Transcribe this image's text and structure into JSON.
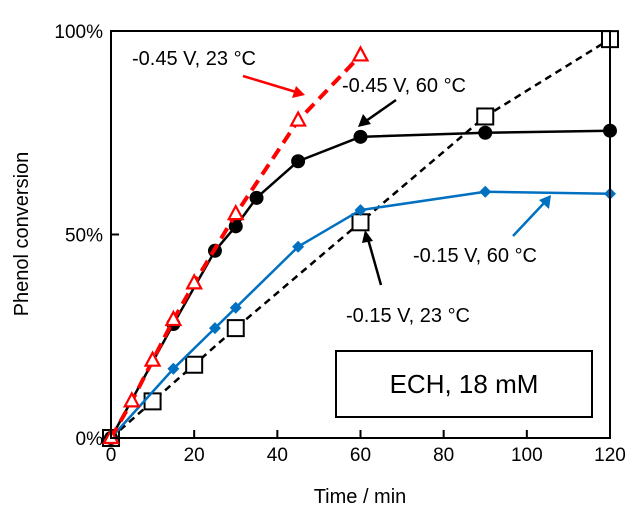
{
  "chart_data": {
    "type": "line",
    "title": "",
    "xlabel": "Time / min",
    "ylabel": "Phenol conversion",
    "xlim": [
      0,
      120
    ],
    "ylim": [
      0,
      100
    ],
    "x_ticks": [
      0,
      20,
      40,
      60,
      80,
      100,
      120
    ],
    "x_tick_labels": [
      "0",
      "20",
      "40",
      "60",
      "80",
      "100",
      "120"
    ],
    "y_ticks": [
      0,
      50,
      100
    ],
    "y_tick_labels": [
      "0%",
      "50%",
      "100%"
    ],
    "grid": false,
    "legend": "none",
    "boxed_annotation": "ECH, 18 mM",
    "series": [
      {
        "name": "-0.45 V, 23 °C",
        "color": "#ff0000",
        "marker": "open-triangle",
        "line": "dashed",
        "x": [
          0,
          5,
          10,
          15,
          20,
          30,
          45,
          60
        ],
        "y": [
          0,
          9,
          19,
          29,
          38,
          55,
          78,
          94
        ]
      },
      {
        "name": "-0.45 V, 60 °C",
        "color": "#000000",
        "marker": "filled-circle",
        "line": "solid",
        "x": [
          0,
          15,
          25,
          30,
          35,
          45,
          60,
          90,
          120
        ],
        "y": [
          0,
          28,
          46,
          52,
          59,
          68,
          74,
          75,
          75.5
        ]
      },
      {
        "name": "-0.15 V, 60 °C",
        "color": "#0070c0",
        "marker": "filled-diamond",
        "line": "solid",
        "x": [
          0,
          15,
          25,
          30,
          45,
          60,
          90,
          120
        ],
        "y": [
          0,
          17,
          27,
          32,
          47,
          56,
          60.5,
          60
        ]
      },
      {
        "name": "-0.15 V, 23 °C",
        "color": "#000000",
        "marker": "open-square",
        "line": "dashed",
        "x": [
          0,
          10,
          20,
          30,
          60,
          90,
          120
        ],
        "y": [
          0,
          9,
          18,
          27,
          53,
          79,
          98
        ]
      }
    ],
    "annotations": [
      {
        "text": "-0.45 V, 23 °C",
        "series": "-0.45 V, 23 °C",
        "color": "#ff0000",
        "point": [
          45,
          78
        ]
      },
      {
        "text": "-0.45 V, 60 °C",
        "series": "-0.45 V, 60 °C",
        "color": "#000000",
        "point": [
          60,
          74
        ]
      },
      {
        "text": "-0.15 V, 60 °C",
        "series": "-0.15 V, 60 °C",
        "color": "#0070c0",
        "point": [
          105,
          60.5
        ]
      },
      {
        "text": "-0.15 V, 23 °C",
        "series": "-0.15 V, 23 °C",
        "color": "#000000",
        "point": [
          61,
          53
        ]
      }
    ]
  }
}
